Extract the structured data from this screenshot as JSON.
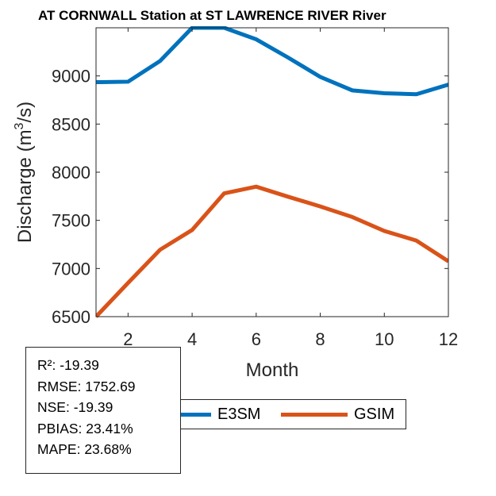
{
  "chart_data": {
    "type": "line",
    "title": "AT CORNWALL  Station at  ST LAWRENCE RIVER  River",
    "xlabel": "Month",
    "ylabel": "Discharge (m",
    "ylabel_sup": "3",
    "ylabel_tail": "/s)",
    "xlim": [
      1,
      12
    ],
    "ylim": [
      6500,
      9500
    ],
    "xticks": [
      2,
      4,
      6,
      8,
      10,
      12
    ],
    "yticks": [
      6500,
      7000,
      7500,
      8000,
      8500,
      9000
    ],
    "grid": false,
    "legend_placement": "bottom-outside",
    "x": [
      1,
      2,
      3,
      4,
      5,
      6,
      7,
      8,
      9,
      10,
      11,
      12
    ],
    "series": [
      {
        "name": "E3SM",
        "color": "#0072BD",
        "values": [
          8935,
          8940,
          9155,
          9500,
          9500,
          9380,
          9190,
          8990,
          8850,
          8820,
          8810,
          8910
        ]
      },
      {
        "name": "GSIM",
        "color": "#D95319",
        "values": [
          6500,
          6850,
          7195,
          7400,
          7780,
          7850,
          7745,
          7645,
          7535,
          7390,
          7290,
          7075
        ]
      }
    ]
  },
  "stats": [
    "R²: -19.39",
    "RMSE: 1752.69",
    "NSE: -19.39",
    "PBIAS: 23.41%",
    "MAPE: 23.68%"
  ]
}
